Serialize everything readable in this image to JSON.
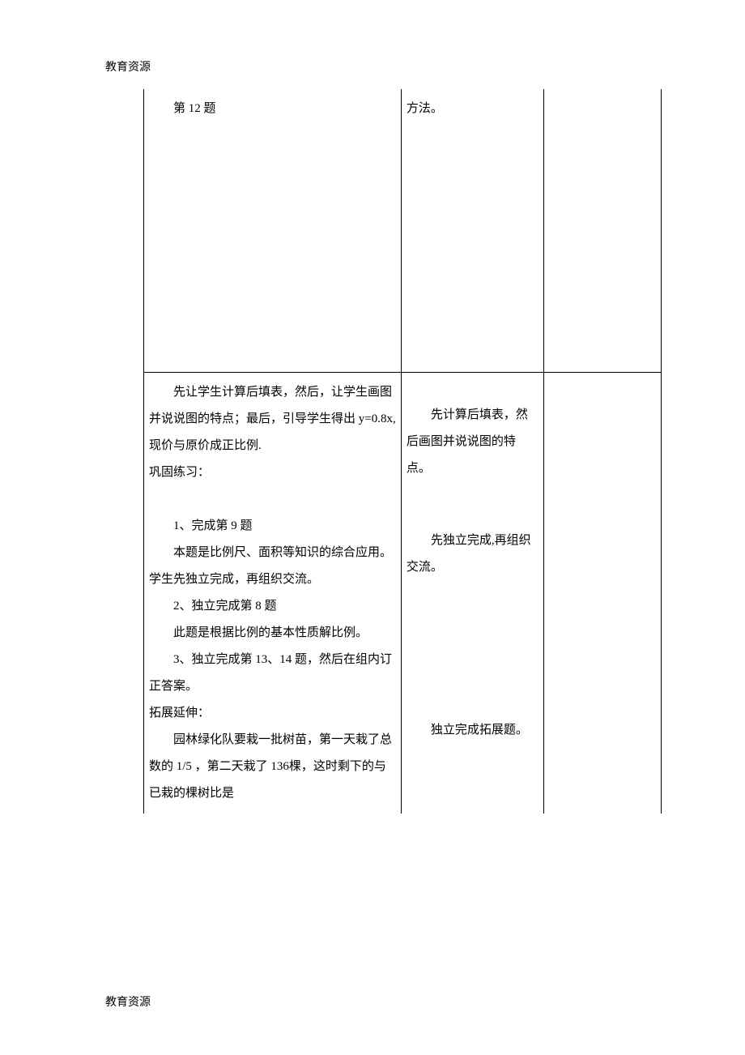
{
  "page": {
    "header": "教育资源",
    "footer": "教育资源"
  },
  "table": {
    "row1": {
      "col1": {
        "line1": "第 12 题"
      },
      "col2": {
        "line1": "方法。"
      }
    },
    "row2": {
      "col1": {
        "p1": "先让学生计算后填表，然后，让学生画图并说说图的特点；最后，引导学生得出 y=0.8x, 现价与原价成正比例.",
        "p2": "巩固练习：",
        "p3": "1、完成第 9 题",
        "p4": "本题是比例尺、面积等知识的综合应用。学生先独立完成，再组织交流。",
        "p5": "2、独立完成第 8 题",
        "p6": "此题是根据比例的基本性质解比例。",
        "p7": "3、独立完成第 13、14 题，然后在组内订正答案。",
        "p8": "拓展延伸：",
        "p9": "园林绿化队要栽一批树苗，第一天栽了总数的 1/5 ，第二天栽了 136棵，这时剩下的与已栽的棵树比是"
      },
      "col2": {
        "b1": "先计算后填表，然后画图并说说图的特点。",
        "b2": "先独立完成,再组织交流。",
        "b3": "独立完成拓展题。"
      }
    }
  }
}
